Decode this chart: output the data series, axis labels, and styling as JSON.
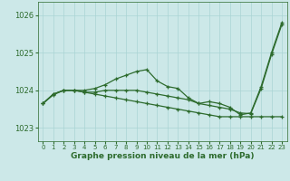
{
  "bg_color": "#cce8e8",
  "grid_color": "#aad4d4",
  "line_color": "#2d6b2d",
  "xlabel": "Graphe pression niveau de la mer (hPa)",
  "ylim": [
    1022.65,
    1026.35
  ],
  "yticks": [
    1023,
    1024,
    1025,
    1026
  ],
  "x_ticks": [
    0,
    1,
    2,
    3,
    4,
    5,
    6,
    7,
    8,
    9,
    10,
    11,
    12,
    13,
    14,
    15,
    16,
    17,
    18,
    19,
    20,
    21,
    22,
    23
  ],
  "line1_y": [
    1023.65,
    1023.9,
    1024.0,
    1024.0,
    1024.0,
    1024.05,
    1024.15,
    1024.3,
    1024.4,
    1024.5,
    1024.55,
    1024.25,
    1024.1,
    1024.05,
    1023.8,
    1023.65,
    1023.7,
    1023.65,
    1023.55,
    1023.35,
    1023.4,
    1024.1,
    1025.0,
    1025.8
  ],
  "line2_y": [
    1023.65,
    1023.9,
    1024.0,
    1024.0,
    1023.95,
    1023.95,
    1024.0,
    1024.0,
    1024.0,
    1024.0,
    1023.95,
    1023.9,
    1023.85,
    1023.8,
    1023.75,
    1023.65,
    1023.6,
    1023.55,
    1023.5,
    1023.4,
    1023.38,
    1024.05,
    1024.95,
    1025.75
  ],
  "line3_y": [
    1023.65,
    1023.88,
    1024.0,
    1024.0,
    1023.95,
    1023.9,
    1023.85,
    1023.8,
    1023.75,
    1023.7,
    1023.65,
    1023.6,
    1023.55,
    1023.5,
    1023.45,
    1023.4,
    1023.35,
    1023.3,
    1023.3,
    1023.3,
    1023.3,
    1023.3,
    1023.3,
    1023.3
  ]
}
